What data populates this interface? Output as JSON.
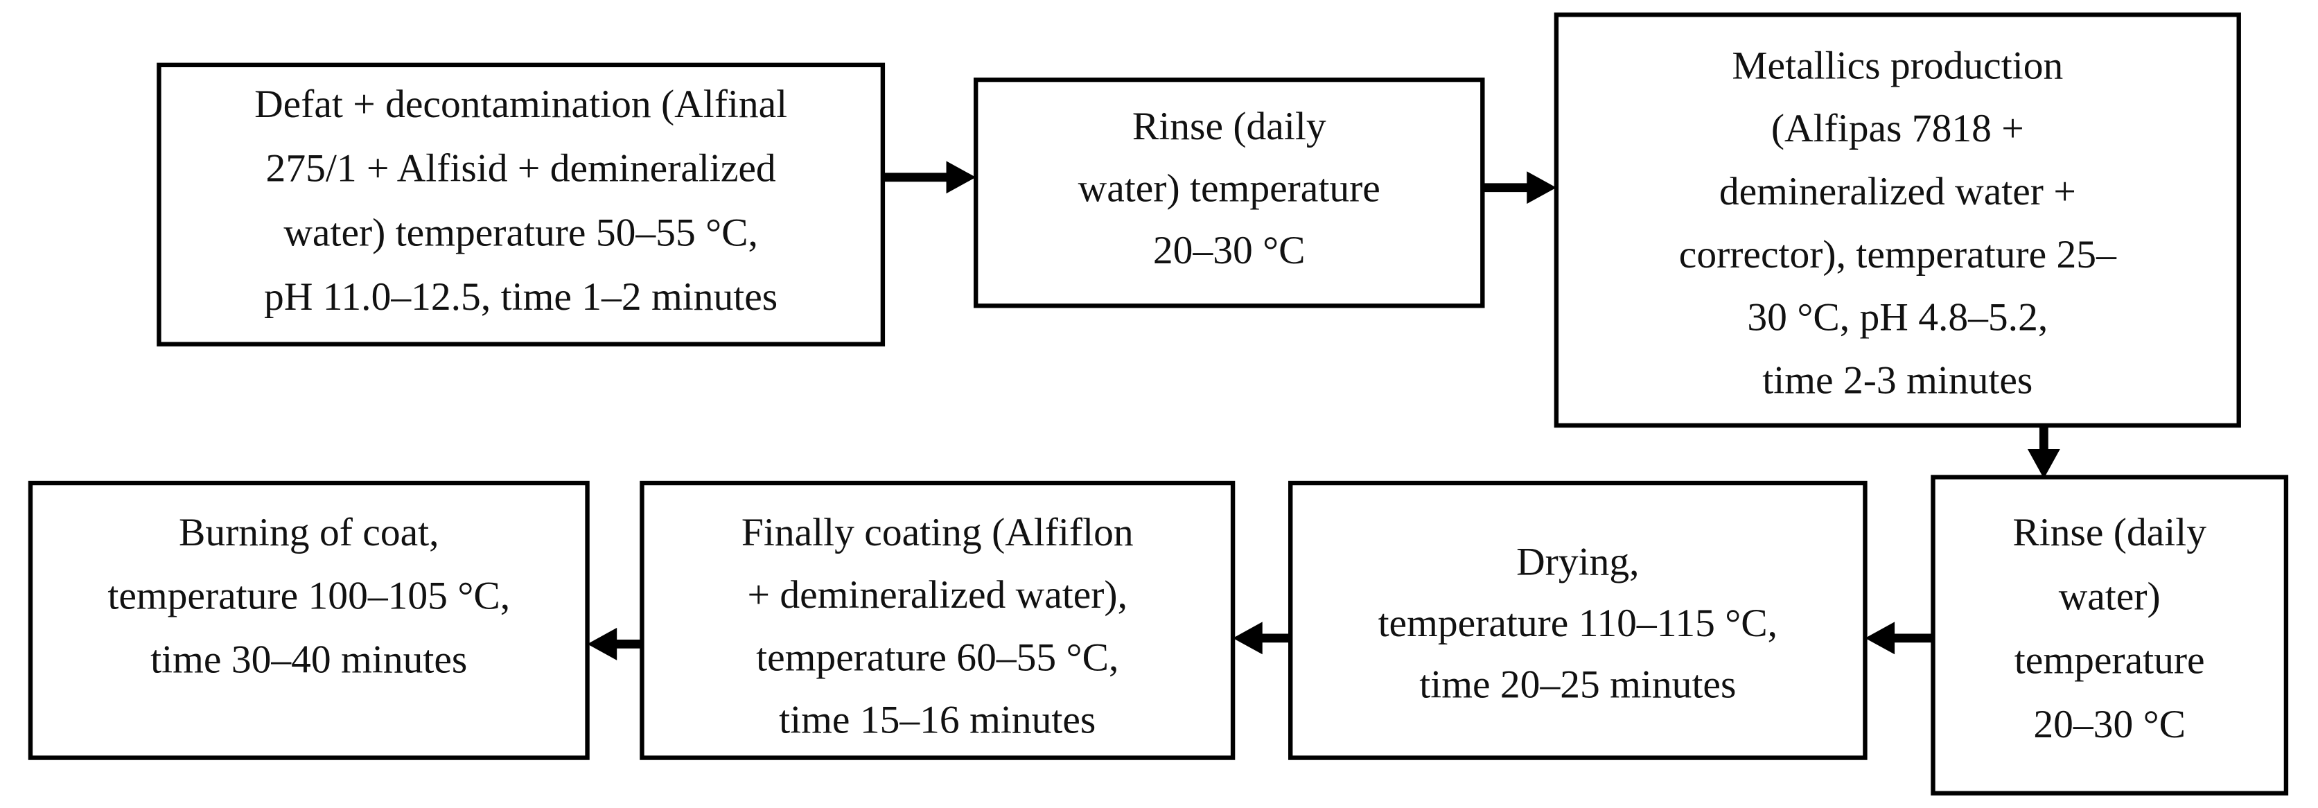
{
  "nodes": [
    {
      "lines": [
        "Defat + decontamination (Alfinal",
        "275/1 + Alfisid + demineralized",
        "water) temperature 50–55 °C,",
        "pH 11.0–12.5, time 1–2 minutes"
      ]
    },
    {
      "lines": [
        "Rinse (daily",
        "water) temperature",
        "20–30 °C"
      ]
    },
    {
      "lines": [
        "Metallics production",
        "(Alfipas 7818 +",
        "demineralized water +",
        "corrector), temperature 25–",
        "30 °C, pH 4.8–5.2,",
        "time 2-3 minutes"
      ]
    },
    {
      "lines": [
        "Rinse (daily",
        "water)",
        "temperature",
        "20–30 °C"
      ]
    },
    {
      "lines": [
        "Drying,",
        "temperature 110–115 °C,",
        "time 20–25 minutes"
      ]
    },
    {
      "lines": [
        "Finally coating (Alfiflon",
        "+ demineralized water),",
        "temperature 60–55 °C,",
        "time 15–16 minutes"
      ]
    },
    {
      "lines": [
        "Burning of coat,",
        "temperature 100–105 °C,",
        "time 30–40 minutes"
      ]
    }
  ]
}
